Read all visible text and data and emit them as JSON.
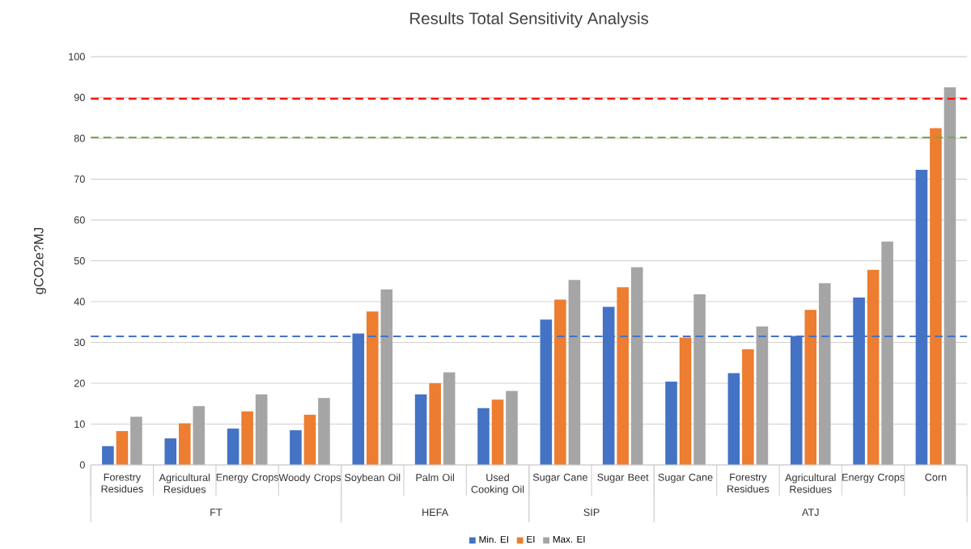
{
  "chart_data": {
    "type": "bar",
    "title": "Results Total Sensitivity Analysis",
    "ylabel": "gCO2e?MJ",
    "categories": [
      "Forestry Residues",
      "Agricultural Residues",
      "Energy Crops",
      "Woody Crops",
      "Soybean Oil",
      "Palm Oil",
      "Used Cooking Oil",
      "Sugar Cane",
      "Sugar Beet",
      "Sugar Cane",
      "Forestry Residues",
      "Agricultural Residues",
      "Energy Crops",
      "Corn"
    ],
    "series": [
      {
        "name": "Min. EI",
        "color": "#4472c4",
        "values": [
          4.6,
          6.5,
          8.9,
          8.5,
          32.2,
          17.3,
          13.9,
          35.6,
          38.7,
          20.4,
          22.5,
          31.6,
          41.0,
          72.3
        ]
      },
      {
        "name": "EI",
        "color": "#ed7d31",
        "values": [
          8.3,
          10.2,
          13.1,
          12.3,
          37.6,
          20.0,
          16.0,
          40.5,
          43.5,
          31.2,
          28.3,
          38.0,
          47.8,
          82.5
        ]
      },
      {
        "name": "Max. EI",
        "color": "#a5a5a5",
        "values": [
          11.8,
          14.4,
          17.3,
          16.4,
          43.0,
          22.7,
          18.1,
          45.3,
          48.4,
          41.8,
          33.9,
          44.5,
          54.7,
          92.5
        ]
      }
    ],
    "ylim": [
      0,
      100
    ],
    "yticks": [
      0,
      10,
      20,
      30,
      40,
      50,
      60,
      70,
      80,
      90,
      100
    ],
    "grid": "y",
    "legend": "bottom",
    "ref_lines": [
      {
        "axis": "y",
        "value": 89.7,
        "color": "#ff0000",
        "line_style": "dashed"
      },
      {
        "axis": "y",
        "value": 80.2,
        "color": "#70ad47",
        "line_style": "dashed"
      },
      {
        "axis": "y",
        "value": 31.5,
        "color": "#4472c4",
        "line_style": "dashed"
      }
    ],
    "annotations": [
      "FT",
      "HEFA",
      "SIP",
      "ATJ"
    ]
  }
}
